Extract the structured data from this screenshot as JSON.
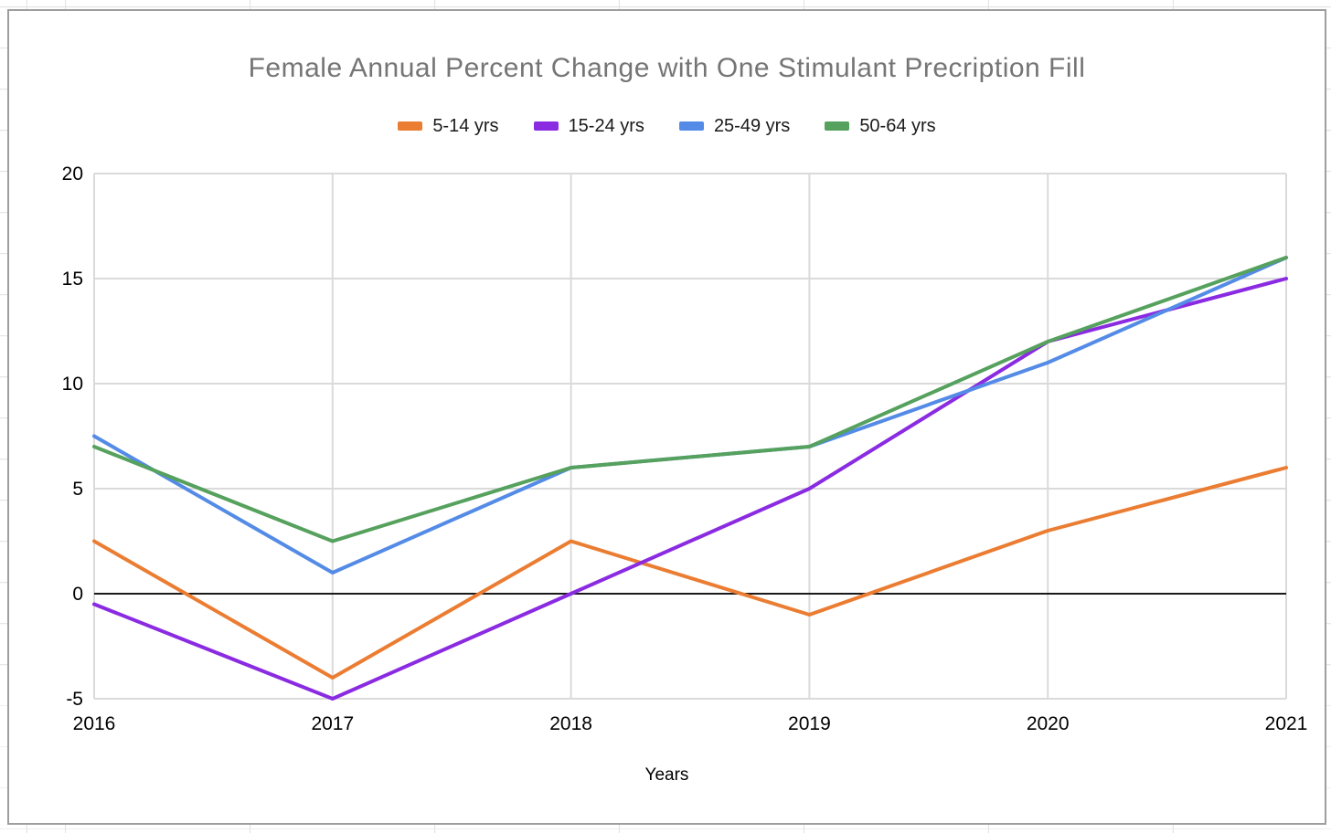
{
  "colors": {
    "sheet_grid": "#e3e3e3",
    "card_border": "#9e9e9e",
    "title_text": "#757575",
    "axis_text": "#000000",
    "gridline": "#dadada",
    "zero_line": "#1a1a1a"
  },
  "chart_data": {
    "type": "line",
    "title": "Female Annual Percent Change with One Stimulant Precription Fill",
    "xlabel": "Years",
    "ylabel": "",
    "x": [
      2016,
      2017,
      2018,
      2019,
      2020,
      2021
    ],
    "series": [
      {
        "name": "5-14 yrs",
        "color": "#eb7d33",
        "values": [
          2.5,
          -4,
          2.5,
          -1,
          3,
          6
        ]
      },
      {
        "name": "15-24 yrs",
        "color": "#8a2be2",
        "values": [
          -0.5,
          -5,
          0,
          5,
          12,
          15
        ]
      },
      {
        "name": "25-49 yrs",
        "color": "#548be6",
        "values": [
          7.5,
          1,
          6,
          7,
          11,
          16
        ]
      },
      {
        "name": "50-64 yrs",
        "color": "#55a15d",
        "values": [
          7,
          2.5,
          6,
          7,
          12,
          16
        ]
      }
    ],
    "ylim": [
      -5,
      20
    ],
    "yticks": [
      20,
      15,
      10,
      5,
      0,
      -5
    ],
    "grid": true,
    "legend_position": "top"
  }
}
